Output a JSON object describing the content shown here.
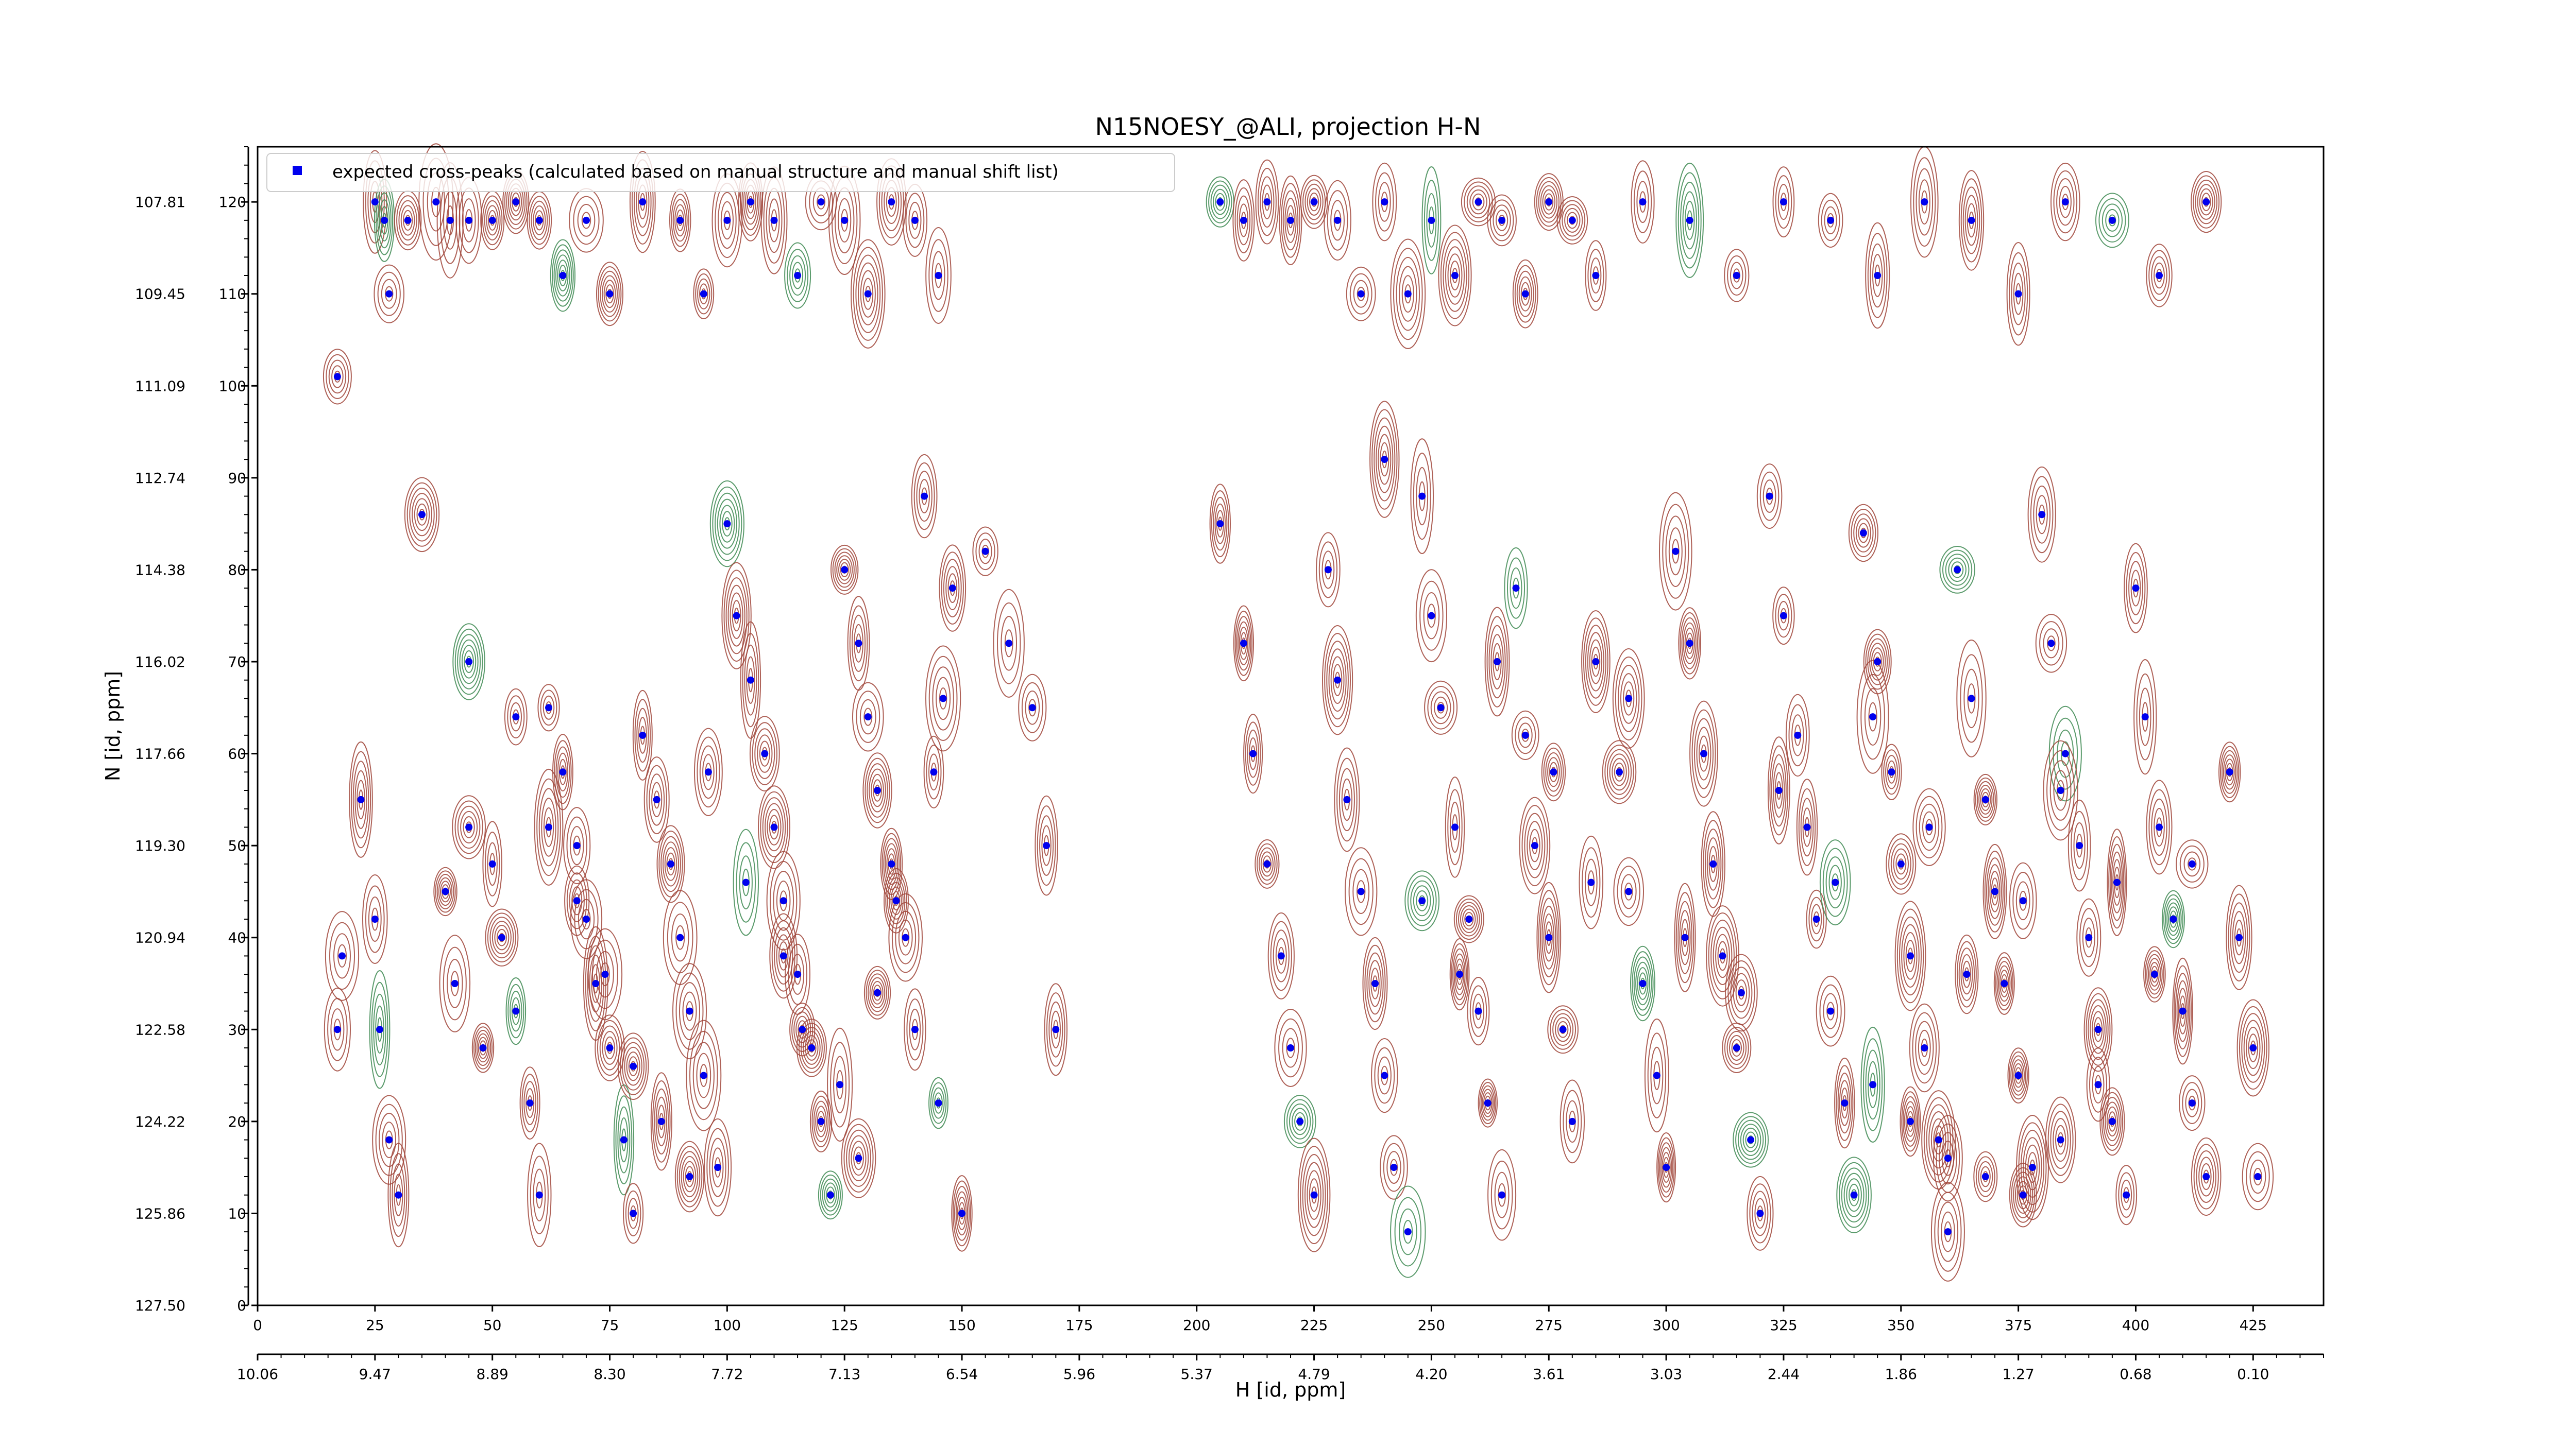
{
  "chart_data": {
    "type": "scatter",
    "title": "N15NOESY_@ALI, projection H-N",
    "xlabel": "H [id, ppm]",
    "ylabel": "N [id, ppm]",
    "xlim": [
      0,
      440
    ],
    "ylim": [
      0,
      126
    ],
    "x_ticks_index": [
      "0",
      "25",
      "50",
      "75",
      "100",
      "125",
      "150",
      "175",
      "200",
      "225",
      "250",
      "275",
      "300",
      "325",
      "350",
      "375",
      "400",
      "425"
    ],
    "x_ticks_ppm": [
      "10.06",
      "9.47",
      "8.89",
      "8.30",
      "7.72",
      "7.13",
      "6.54",
      "5.96",
      "5.37",
      "4.79",
      "4.20",
      "3.61",
      "3.03",
      "2.44",
      "1.86",
      "1.27",
      "0.68",
      "0.10"
    ],
    "y_ticks_index": [
      "0",
      "10",
      "20",
      "30",
      "40",
      "50",
      "60",
      "70",
      "80",
      "90",
      "100",
      "110",
      "120"
    ],
    "y_ticks_ppm": [
      "127.50",
      "125.86",
      "124.22",
      "122.58",
      "120.94",
      "119.30",
      "117.66",
      "116.02",
      "114.38",
      "112.74",
      "111.09",
      "109.45",
      "107.81"
    ],
    "legend": {
      "label": "expected cross-peaks (calculated based on manual structure and manual shift list)",
      "position": "top-left"
    },
    "colors": {
      "positive_contour": "#a0453a",
      "negative_contour": "#3e8a52",
      "marker": "#0000ee"
    },
    "series": [
      {
        "name": "expected cross-peaks (calculated based on manual structure and manual shift list)",
        "points": [
          [
            17,
            101
          ],
          [
            17,
            30
          ],
          [
            18,
            38
          ],
          [
            25,
            120
          ],
          [
            27,
            118
          ],
          [
            28,
            110
          ],
          [
            32,
            118
          ],
          [
            38,
            120
          ],
          [
            41,
            118
          ],
          [
            45,
            118
          ],
          [
            50,
            118
          ],
          [
            55,
            120
          ],
          [
            60,
            118
          ],
          [
            65,
            112
          ],
          [
            70,
            118
          ],
          [
            75,
            110
          ],
          [
            82,
            120
          ],
          [
            90,
            118
          ],
          [
            95,
            110
          ],
          [
            100,
            118
          ],
          [
            105,
            120
          ],
          [
            110,
            118
          ],
          [
            115,
            112
          ],
          [
            120,
            120
          ],
          [
            125,
            118
          ],
          [
            130,
            110
          ],
          [
            135,
            120
          ],
          [
            140,
            118
          ],
          [
            145,
            112
          ],
          [
            22,
            55
          ],
          [
            25,
            42
          ],
          [
            26,
            30
          ],
          [
            28,
            18
          ],
          [
            30,
            12
          ],
          [
            40,
            45
          ],
          [
            42,
            35
          ],
          [
            45,
            52
          ],
          [
            48,
            28
          ],
          [
            50,
            48
          ],
          [
            52,
            40
          ],
          [
            55,
            32
          ],
          [
            58,
            22
          ],
          [
            60,
            12
          ],
          [
            62,
            65
          ],
          [
            65,
            58
          ],
          [
            68,
            50
          ],
          [
            70,
            42
          ],
          [
            72,
            35
          ],
          [
            75,
            28
          ],
          [
            78,
            18
          ],
          [
            80,
            10
          ],
          [
            82,
            62
          ],
          [
            85,
            55
          ],
          [
            88,
            48
          ],
          [
            90,
            40
          ],
          [
            92,
            32
          ],
          [
            95,
            25
          ],
          [
            98,
            15
          ],
          [
            100,
            85
          ],
          [
            102,
            75
          ],
          [
            105,
            68
          ],
          [
            108,
            60
          ],
          [
            110,
            52
          ],
          [
            112,
            44
          ],
          [
            115,
            36
          ],
          [
            118,
            28
          ],
          [
            120,
            20
          ],
          [
            122,
            12
          ],
          [
            125,
            80
          ],
          [
            128,
            72
          ],
          [
            130,
            64
          ],
          [
            132,
            56
          ],
          [
            135,
            48
          ],
          [
            138,
            40
          ],
          [
            140,
            30
          ],
          [
            142,
            88
          ],
          [
            145,
            22
          ],
          [
            148,
            78
          ],
          [
            150,
            10
          ],
          [
            155,
            82
          ],
          [
            160,
            72
          ],
          [
            165,
            65
          ],
          [
            168,
            50
          ],
          [
            170,
            30
          ],
          [
            35,
            86
          ],
          [
            45,
            70
          ],
          [
            55,
            64
          ],
          [
            62,
            52
          ],
          [
            68,
            44
          ],
          [
            74,
            36
          ],
          [
            80,
            26
          ],
          [
            86,
            20
          ],
          [
            92,
            14
          ],
          [
            96,
            58
          ],
          [
            104,
            46
          ],
          [
            112,
            38
          ],
          [
            116,
            30
          ],
          [
            124,
            24
          ],
          [
            128,
            16
          ],
          [
            132,
            34
          ],
          [
            136,
            44
          ],
          [
            144,
            58
          ],
          [
            146,
            66
          ],
          [
            205,
            120
          ],
          [
            210,
            118
          ],
          [
            215,
            120
          ],
          [
            220,
            118
          ],
          [
            225,
            120
          ],
          [
            230,
            118
          ],
          [
            235,
            110
          ],
          [
            240,
            120
          ],
          [
            245,
            110
          ],
          [
            250,
            118
          ],
          [
            255,
            112
          ],
          [
            260,
            120
          ],
          [
            265,
            118
          ],
          [
            270,
            110
          ],
          [
            275,
            120
          ],
          [
            280,
            118
          ],
          [
            285,
            112
          ],
          [
            295,
            120
          ],
          [
            305,
            118
          ],
          [
            315,
            112
          ],
          [
            325,
            120
          ],
          [
            335,
            118
          ],
          [
            345,
            112
          ],
          [
            355,
            120
          ],
          [
            365,
            118
          ],
          [
            375,
            110
          ],
          [
            385,
            120
          ],
          [
            395,
            118
          ],
          [
            405,
            112
          ],
          [
            415,
            120
          ],
          [
            205,
            85
          ],
          [
            210,
            72
          ],
          [
            212,
            60
          ],
          [
            215,
            48
          ],
          [
            218,
            38
          ],
          [
            220,
            28
          ],
          [
            222,
            20
          ],
          [
            225,
            12
          ],
          [
            228,
            80
          ],
          [
            230,
            68
          ],
          [
            232,
            55
          ],
          [
            235,
            45
          ],
          [
            238,
            35
          ],
          [
            240,
            25
          ],
          [
            242,
            15
          ],
          [
            245,
            8
          ],
          [
            248,
            88
          ],
          [
            250,
            75
          ],
          [
            252,
            65
          ],
          [
            255,
            52
          ],
          [
            258,
            42
          ],
          [
            260,
            32
          ],
          [
            262,
            22
          ],
          [
            265,
            12
          ],
          [
            268,
            78
          ],
          [
            270,
            62
          ],
          [
            272,
            50
          ],
          [
            275,
            40
          ],
          [
            278,
            30
          ],
          [
            280,
            20
          ],
          [
            285,
            70
          ],
          [
            290,
            58
          ],
          [
            292,
            45
          ],
          [
            295,
            35
          ],
          [
            298,
            25
          ],
          [
            300,
            15
          ],
          [
            302,
            82
          ],
          [
            305,
            72
          ],
          [
            308,
            60
          ],
          [
            310,
            48
          ],
          [
            312,
            38
          ],
          [
            315,
            28
          ],
          [
            318,
            18
          ],
          [
            320,
            10
          ],
          [
            322,
            88
          ],
          [
            325,
            75
          ],
          [
            328,
            62
          ],
          [
            330,
            52
          ],
          [
            332,
            42
          ],
          [
            335,
            32
          ],
          [
            338,
            22
          ],
          [
            340,
            12
          ],
          [
            342,
            84
          ],
          [
            345,
            70
          ],
          [
            348,
            58
          ],
          [
            350,
            48
          ],
          [
            352,
            38
          ],
          [
            355,
            28
          ],
          [
            358,
            18
          ],
          [
            360,
            8
          ],
          [
            362,
            80
          ],
          [
            365,
            66
          ],
          [
            368,
            55
          ],
          [
            370,
            45
          ],
          [
            372,
            35
          ],
          [
            375,
            25
          ],
          [
            378,
            15
          ],
          [
            380,
            86
          ],
          [
            382,
            72
          ],
          [
            385,
            60
          ],
          [
            388,
            50
          ],
          [
            390,
            40
          ],
          [
            392,
            30
          ],
          [
            395,
            20
          ],
          [
            398,
            12
          ],
          [
            400,
            78
          ],
          [
            402,
            64
          ],
          [
            405,
            52
          ],
          [
            408,
            42
          ],
          [
            410,
            32
          ],
          [
            412,
            22
          ],
          [
            415,
            14
          ],
          [
            420,
            58
          ],
          [
            422,
            40
          ],
          [
            425,
            28
          ],
          [
            426,
            14
          ],
          [
            240,
            92
          ],
          [
            248,
            44
          ],
          [
            256,
            36
          ],
          [
            264,
            70
          ],
          [
            276,
            58
          ],
          [
            284,
            46
          ],
          [
            292,
            66
          ],
          [
            304,
            40
          ],
          [
            316,
            34
          ],
          [
            324,
            56
          ],
          [
            336,
            46
          ],
          [
            344,
            64
          ],
          [
            356,
            52
          ],
          [
            364,
            36
          ],
          [
            376,
            44
          ],
          [
            384,
            56
          ],
          [
            396,
            46
          ],
          [
            404,
            36
          ],
          [
            412,
            48
          ],
          [
            344,
            24
          ],
          [
            352,
            20
          ],
          [
            360,
            16
          ],
          [
            368,
            14
          ],
          [
            376,
            12
          ],
          [
            384,
            18
          ],
          [
            392,
            24
          ]
        ]
      }
    ]
  }
}
